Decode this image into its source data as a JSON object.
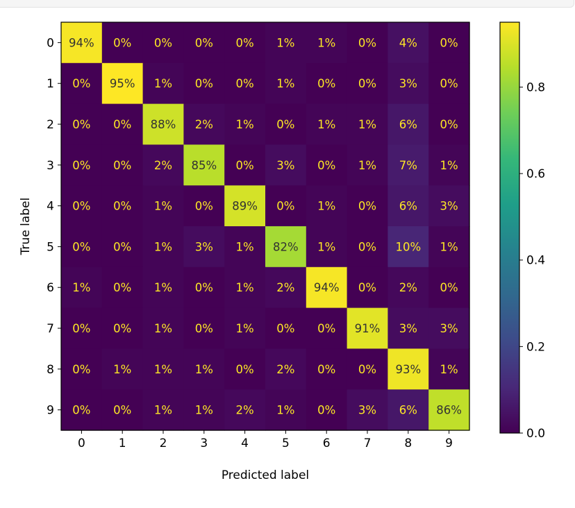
{
  "chart_data": {
    "type": "heatmap",
    "title": "",
    "xlabel": "Predicted label",
    "ylabel": "True label",
    "categories": [
      "0",
      "1",
      "2",
      "3",
      "4",
      "5",
      "6",
      "7",
      "8",
      "9"
    ],
    "value_format": "percent_integer",
    "matrix": [
      [
        0.94,
        0.0,
        0.0,
        0.0,
        0.0,
        0.01,
        0.01,
        0.0,
        0.04,
        0.0
      ],
      [
        0.0,
        0.95,
        0.01,
        0.0,
        0.0,
        0.01,
        0.0,
        0.0,
        0.03,
        0.0
      ],
      [
        0.0,
        0.0,
        0.88,
        0.02,
        0.01,
        0.0,
        0.01,
        0.01,
        0.06,
        0.0
      ],
      [
        0.0,
        0.0,
        0.02,
        0.85,
        0.0,
        0.03,
        0.0,
        0.01,
        0.07,
        0.01
      ],
      [
        0.0,
        0.0,
        0.01,
        0.0,
        0.89,
        0.0,
        0.01,
        0.0,
        0.06,
        0.03
      ],
      [
        0.0,
        0.0,
        0.01,
        0.03,
        0.01,
        0.82,
        0.01,
        0.0,
        0.1,
        0.01
      ],
      [
        0.01,
        0.0,
        0.01,
        0.0,
        0.01,
        0.02,
        0.94,
        0.0,
        0.02,
        0.0
      ],
      [
        0.0,
        0.0,
        0.01,
        0.0,
        0.01,
        0.0,
        0.0,
        0.91,
        0.03,
        0.03
      ],
      [
        0.0,
        0.01,
        0.01,
        0.01,
        0.0,
        0.02,
        0.0,
        0.0,
        0.93,
        0.01
      ],
      [
        0.0,
        0.0,
        0.01,
        0.01,
        0.02,
        0.01,
        0.0,
        0.03,
        0.06,
        0.86
      ]
    ],
    "colormap": "viridis",
    "colorbar": {
      "vmin": 0.0,
      "vmax": 0.95,
      "ticks": [
        0.0,
        0.2,
        0.4,
        0.6,
        0.8
      ],
      "tick_labels": [
        "0.0",
        "0.2",
        "0.4",
        "0.6",
        "0.8"
      ]
    },
    "text_colors": {
      "light": "#fde725",
      "dark": "#333333"
    }
  }
}
